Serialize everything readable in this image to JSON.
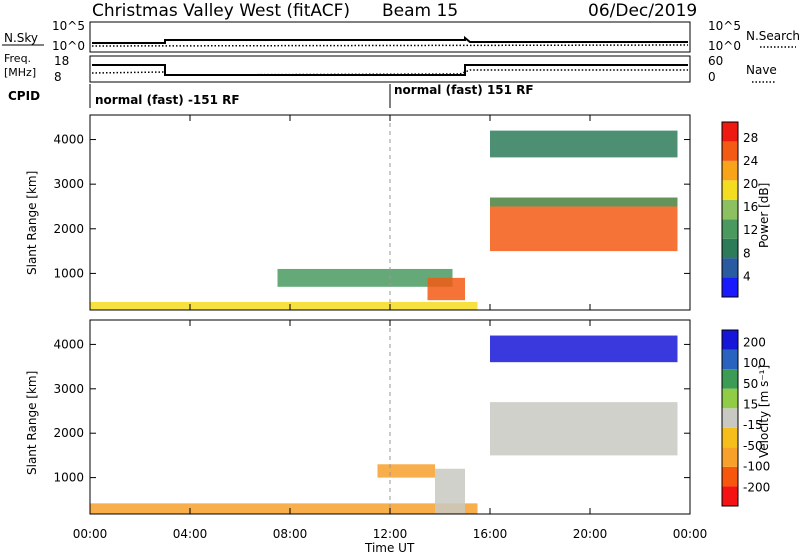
{
  "header": {
    "title": "Christmas Valley West (fitACF)",
    "beam": "Beam 15",
    "date": "06/Dec/2019"
  },
  "strip": {
    "nsky_label": "N.Sky",
    "nsky_ticks": [
      "10^5",
      "10^0"
    ],
    "nsearch_label": "N.Search",
    "nsearch_ticks": [
      "10^5",
      "10^0"
    ],
    "freq_label": "Freq.",
    "freq_unit": "[MHz]",
    "freq_ticks": [
      "18",
      "8"
    ],
    "nave_label": "Nave",
    "nave_ticks": [
      "60",
      "0"
    ],
    "cpid_label": "CPID",
    "cpid_1": "normal (fast) -151 RF",
    "cpid_2": "normal (fast) 151 RF"
  },
  "colors": {
    "power_scale": [
      "#1a1aff",
      "#2a5aa0",
      "#2e7b5a",
      "#4a9a60",
      "#8cc060",
      "#f4dc20",
      "#f7a41a",
      "#f35a14",
      "#ee1a12"
    ],
    "velocity_scale": [
      "#f51212",
      "#f7560e",
      "#f7a02a",
      "#f5be1a",
      "#c9c9c3",
      "#90cc46",
      "#3c9c56",
      "#2a62c0",
      "#1616d8"
    ]
  },
  "chart_data": [
    {
      "type": "heatmap",
      "name": "power",
      "xlabel": "Time UT",
      "ylabel": "Slant Range [km]",
      "colorbar_label": "Power [dB]",
      "colorbar_ticks": [
        "28",
        "24",
        "20",
        "16",
        "12",
        "8",
        "4"
      ],
      "x_ticks": [
        "00:00",
        "04:00",
        "08:00",
        "12:00",
        "16:00",
        "20:00",
        "00:00"
      ],
      "y_ticks": [
        "4000",
        "3000",
        "2000",
        "1000"
      ],
      "ylim": [
        180,
        4550
      ],
      "xlim": [
        0,
        24
      ],
      "regions": [
        {
          "t0": 0.0,
          "t1": 15.5,
          "r0": 180,
          "r1": 360,
          "level": 5
        },
        {
          "t0": 7.5,
          "t1": 14.5,
          "r0": 700,
          "r1": 1100,
          "level": 3
        },
        {
          "t0": 13.5,
          "t1": 15.0,
          "r0": 400,
          "r1": 900,
          "level": 7
        },
        {
          "t0": 16.0,
          "t1": 23.5,
          "r0": 1500,
          "r1": 2700,
          "level": 7
        },
        {
          "t0": 16.0,
          "t1": 23.5,
          "r0": 2500,
          "r1": 2700,
          "level": 3
        },
        {
          "t0": 16.0,
          "t1": 23.5,
          "r0": 3600,
          "r1": 4200,
          "level": 2
        }
      ]
    },
    {
      "type": "heatmap",
      "name": "velocity",
      "xlabel": "Time UT",
      "ylabel": "Slant Range [km]",
      "colorbar_label": "Velocity [m s⁻¹]",
      "colorbar_ticks": [
        "200",
        "100",
        "50",
        "15",
        "-15",
        "-50",
        "-100",
        "-200"
      ],
      "x_ticks": [
        "00:00",
        "04:00",
        "08:00",
        "12:00",
        "16:00",
        "20:00",
        "00:00"
      ],
      "y_ticks": [
        "4000",
        "3000",
        "2000",
        "1000"
      ],
      "ylim": [
        180,
        4550
      ],
      "xlim": [
        0,
        24
      ],
      "regions": [
        {
          "t0": 0.0,
          "t1": 15.5,
          "r0": 180,
          "r1": 420,
          "level": 2
        },
        {
          "t0": 11.5,
          "t1": 13.8,
          "r0": 1000,
          "r1": 1300,
          "level": 2
        },
        {
          "t0": 13.8,
          "t1": 15.0,
          "r0": 200,
          "r1": 1200,
          "level": 4
        },
        {
          "t0": 16.0,
          "t1": 23.5,
          "r0": 1500,
          "r1": 2700,
          "level": 4
        },
        {
          "t0": 16.0,
          "t1": 23.5,
          "r0": 3600,
          "r1": 4200,
          "level": 8
        }
      ]
    }
  ]
}
